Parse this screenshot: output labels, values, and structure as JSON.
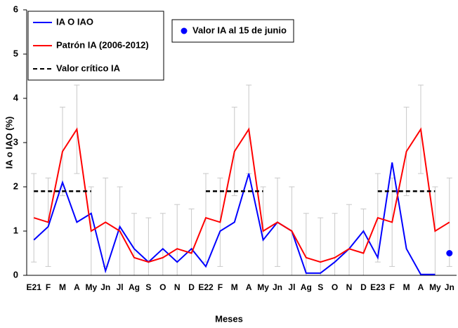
{
  "chart_data": {
    "type": "line",
    "x_label": "Meses",
    "y_label": "IA o IAO (%)",
    "categories": [
      "E21",
      "F",
      "M",
      "A",
      "My",
      "Jn",
      "Jl",
      "Ag",
      "S",
      "O",
      "N",
      "D",
      "E22",
      "F",
      "M",
      "A",
      "My",
      "Jn",
      "Jl",
      "Ag",
      "S",
      "O",
      "N",
      "D",
      "E23",
      "F",
      "M",
      "A",
      "My",
      "Jn"
    ],
    "ylim": [
      0,
      6
    ],
    "yticks": [
      0,
      1,
      2,
      3,
      4,
      5,
      6
    ],
    "grid": false,
    "series": [
      {
        "name": "IA O IAO",
        "color": "#0000ff",
        "style": "solid",
        "values": [
          0.8,
          1.1,
          2.1,
          1.2,
          1.4,
          0.1,
          1.1,
          0.6,
          0.3,
          0.6,
          0.3,
          0.6,
          0.2,
          1.0,
          1.2,
          2.3,
          0.8,
          1.2,
          1.0,
          0.05,
          0.05,
          0.3,
          0.6,
          1.0,
          0.4,
          2.55,
          0.6,
          0.02,
          0.02,
          null
        ]
      },
      {
        "name": "Patrón IA (2006-2012)",
        "color": "#ff0000",
        "style": "solid",
        "error_color": "#c8c8c8",
        "values": [
          1.3,
          1.2,
          2.8,
          3.3,
          1.0,
          1.2,
          1.0,
          0.4,
          0.3,
          0.4,
          0.6,
          0.5,
          1.3,
          1.2,
          2.8,
          3.3,
          1.0,
          1.2,
          1.0,
          0.4,
          0.3,
          0.4,
          0.6,
          0.5,
          1.3,
          1.2,
          2.8,
          3.3,
          1.0,
          1.2
        ],
        "errors": [
          1.0,
          1.0,
          1.0,
          1.0,
          1.0,
          1.0,
          1.0,
          1.0,
          1.0,
          1.0,
          1.0,
          1.0,
          1.0,
          1.0,
          1.0,
          1.0,
          1.0,
          1.0,
          1.0,
          1.0,
          1.0,
          1.0,
          1.0,
          1.0,
          1.0,
          1.0,
          1.0,
          1.0,
          1.0,
          1.0
        ]
      },
      {
        "name": "Valor crítico IA",
        "color": "#000000",
        "style": "dashed",
        "values": [
          1.9,
          1.9,
          1.9,
          1.9,
          1.9,
          null,
          null,
          null,
          null,
          null,
          null,
          null,
          1.9,
          1.9,
          1.9,
          1.9,
          1.9,
          null,
          null,
          null,
          null,
          null,
          null,
          null,
          1.9,
          1.9,
          1.9,
          1.9,
          1.9,
          null
        ]
      },
      {
        "name": "Valor IA al 15 de junio",
        "color": "#0000ff",
        "style": "marker",
        "values": [
          null,
          null,
          null,
          null,
          null,
          null,
          null,
          null,
          null,
          null,
          null,
          null,
          null,
          null,
          null,
          null,
          null,
          null,
          null,
          null,
          null,
          null,
          null,
          null,
          null,
          null,
          null,
          null,
          null,
          0.5
        ]
      }
    ]
  }
}
